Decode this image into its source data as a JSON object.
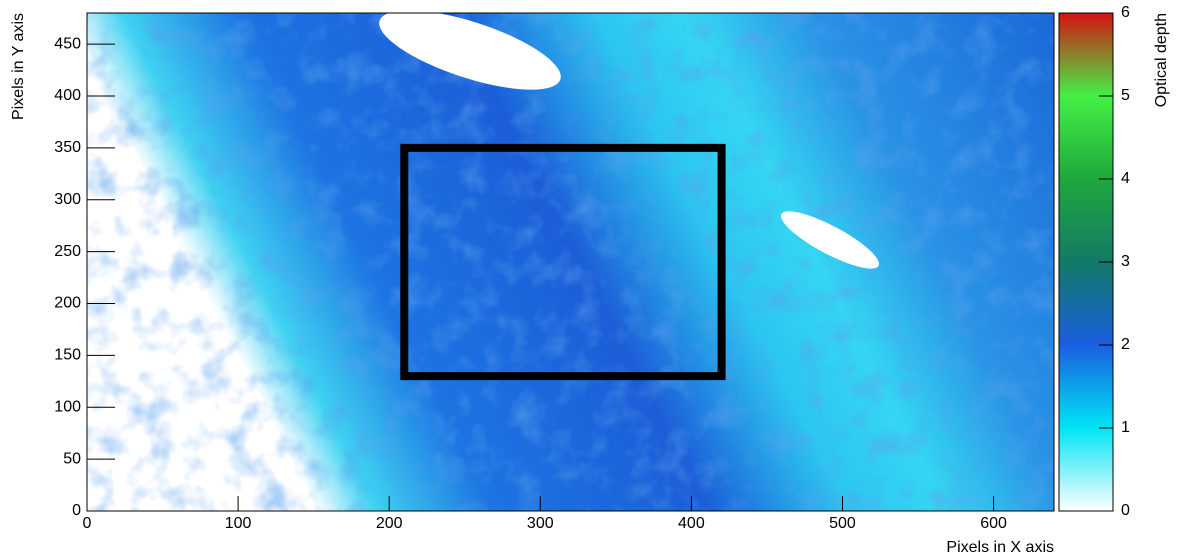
{
  "chart_data": {
    "type": "heatmap",
    "x_label": "Pixels in X axis",
    "y_label": "Pixels in Y axis",
    "z_label": "Optical depth",
    "xlim": [
      0,
      640
    ],
    "xticks": [
      0,
      100,
      200,
      300,
      400,
      500,
      600
    ],
    "ylim": [
      0,
      480
    ],
    "yticks": [
      0,
      50,
      100,
      150,
      200,
      250,
      300,
      350,
      400,
      450
    ],
    "zlim": [
      0,
      6
    ],
    "zticks": [
      0,
      1,
      2,
      3,
      4,
      5,
      6
    ],
    "palette": [
      "#ffffff",
      "#00e4f4",
      "#1a5fe0",
      "#127a66",
      "#1fa83e",
      "#44f044",
      "#d41212"
    ],
    "box": {
      "x": [
        210,
        420
      ],
      "y": [
        130,
        350
      ],
      "color": "#000000"
    }
  }
}
